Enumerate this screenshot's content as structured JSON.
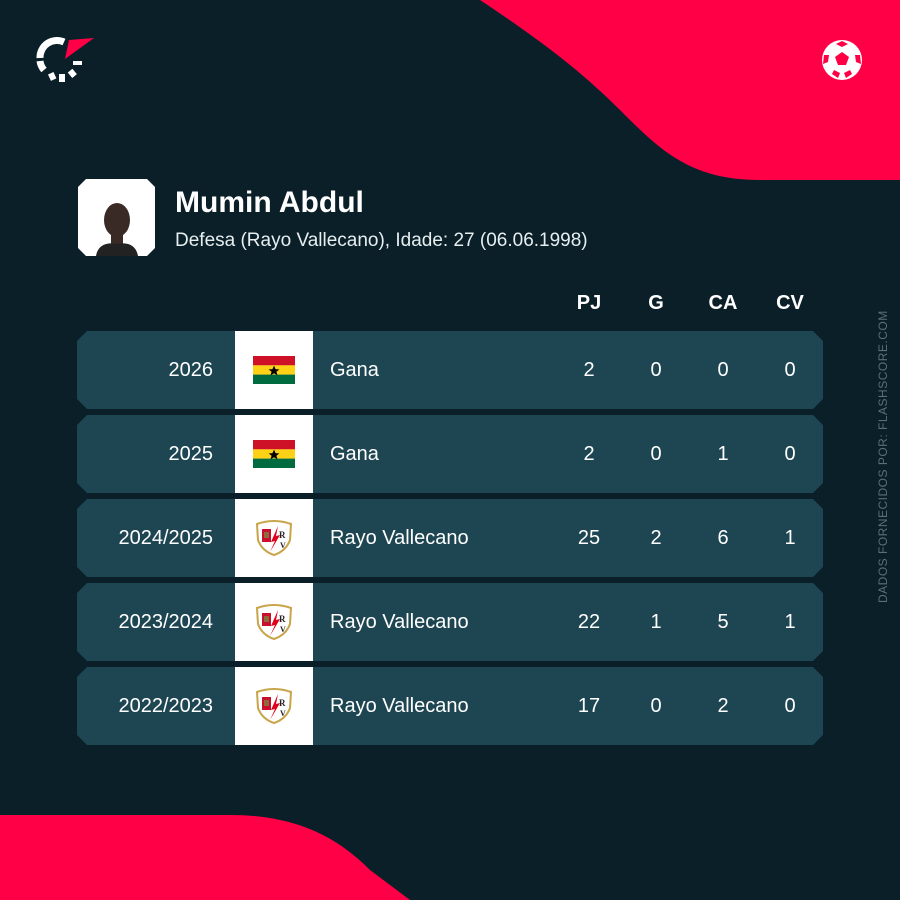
{
  "colors": {
    "background": "#0b1f28",
    "accent": "#ff0046",
    "row": "#1e4652"
  },
  "player": {
    "name": "Mumin Abdul",
    "details": "Defesa (Rayo Vallecano), Idade: 27 (06.06.1998)"
  },
  "columns": [
    "PJ",
    "G",
    "CA",
    "CV"
  ],
  "rows": [
    {
      "season": "2026",
      "team": "Gana",
      "crest": "ghana-flag",
      "values": [
        "2",
        "0",
        "0",
        "0"
      ]
    },
    {
      "season": "2025",
      "team": "Gana",
      "crest": "ghana-flag",
      "values": [
        "2",
        "0",
        "1",
        "0"
      ]
    },
    {
      "season": "2024/2025",
      "team": "Rayo Vallecano",
      "crest": "rayo-vallecano-crest",
      "values": [
        "25",
        "2",
        "6",
        "1"
      ]
    },
    {
      "season": "2023/2024",
      "team": "Rayo Vallecano",
      "crest": "rayo-vallecano-crest",
      "values": [
        "22",
        "1",
        "5",
        "1"
      ]
    },
    {
      "season": "2022/2023",
      "team": "Rayo Vallecano",
      "crest": "rayo-vallecano-crest",
      "values": [
        "17",
        "0",
        "2",
        "0"
      ]
    }
  ],
  "credit": "DADOS FORNECIDOS POR: FLASHSCORE.COM"
}
